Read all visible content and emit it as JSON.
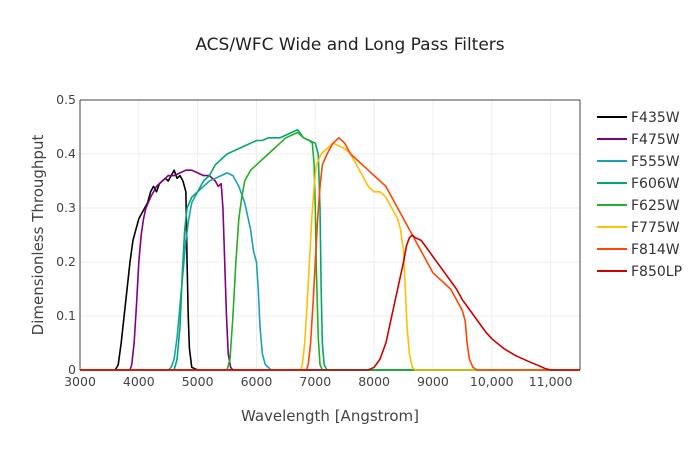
{
  "chart_data": {
    "type": "line",
    "title": "ACS/WFC Wide and Long Pass Filters",
    "xlabel": "Wavelength [Angstrom]",
    "ylabel": "Dimensionless Throughput",
    "xlim": [
      3000,
      11500
    ],
    "ylim": [
      0,
      0.5
    ],
    "x_ticks": [
      3000,
      4000,
      5000,
      6000,
      7000,
      8000,
      9000,
      10000,
      11000
    ],
    "x_tick_labels": [
      "3000",
      "4000",
      "5000",
      "6000",
      "7000",
      "8000",
      "9000",
      "10,000",
      "11,000"
    ],
    "y_ticks": [
      0,
      0.1,
      0.2,
      0.3,
      0.4,
      0.5
    ],
    "y_tick_labels": [
      "0",
      "0.1",
      "0.2",
      "0.3",
      "0.4",
      "0.5"
    ],
    "grid": true,
    "legend_position": "right",
    "series": [
      {
        "name": "F435W",
        "color": "#000000",
        "points": [
          [
            3000,
            0
          ],
          [
            3600,
            0
          ],
          [
            3650,
            0.01
          ],
          [
            3700,
            0.05
          ],
          [
            3750,
            0.1
          ],
          [
            3800,
            0.15
          ],
          [
            3850,
            0.2
          ],
          [
            3900,
            0.24
          ],
          [
            3950,
            0.26
          ],
          [
            4000,
            0.28
          ],
          [
            4050,
            0.29
          ],
          [
            4100,
            0.3
          ],
          [
            4150,
            0.31
          ],
          [
            4200,
            0.33
          ],
          [
            4250,
            0.34
          ],
          [
            4300,
            0.33
          ],
          [
            4350,
            0.345
          ],
          [
            4400,
            0.35
          ],
          [
            4450,
            0.355
          ],
          [
            4500,
            0.35
          ],
          [
            4550,
            0.36
          ],
          [
            4600,
            0.37
          ],
          [
            4650,
            0.355
          ],
          [
            4700,
            0.36
          ],
          [
            4750,
            0.35
          ],
          [
            4800,
            0.33
          ],
          [
            4820,
            0.2
          ],
          [
            4840,
            0.1
          ],
          [
            4860,
            0.04
          ],
          [
            4900,
            0.005
          ],
          [
            5000,
            0
          ],
          [
            11500,
            0
          ]
        ]
      },
      {
        "name": "F475W",
        "color": "#800080",
        "points": [
          [
            3000,
            0
          ],
          [
            3850,
            0
          ],
          [
            3880,
            0.01
          ],
          [
            3920,
            0.05
          ],
          [
            3960,
            0.12
          ],
          [
            4000,
            0.2
          ],
          [
            4040,
            0.25
          ],
          [
            4080,
            0.28
          ],
          [
            4120,
            0.3
          ],
          [
            4200,
            0.32
          ],
          [
            4300,
            0.34
          ],
          [
            4400,
            0.35
          ],
          [
            4500,
            0.36
          ],
          [
            4600,
            0.36
          ],
          [
            4700,
            0.365
          ],
          [
            4800,
            0.37
          ],
          [
            4900,
            0.37
          ],
          [
            5000,
            0.365
          ],
          [
            5100,
            0.36
          ],
          [
            5200,
            0.36
          ],
          [
            5300,
            0.35
          ],
          [
            5350,
            0.34
          ],
          [
            5400,
            0.345
          ],
          [
            5430,
            0.3
          ],
          [
            5460,
            0.2
          ],
          [
            5490,
            0.1
          ],
          [
            5520,
            0.03
          ],
          [
            5560,
            0.005
          ],
          [
            5600,
            0
          ],
          [
            11500,
            0
          ]
        ]
      },
      {
        "name": "F555W",
        "color": "#17a2b8",
        "points": [
          [
            3000,
            0
          ],
          [
            4500,
            0
          ],
          [
            4550,
            0.005
          ],
          [
            4600,
            0.02
          ],
          [
            4650,
            0.06
          ],
          [
            4700,
            0.12
          ],
          [
            4750,
            0.18
          ],
          [
            4800,
            0.24
          ],
          [
            4850,
            0.28
          ],
          [
            4900,
            0.31
          ],
          [
            5000,
            0.33
          ],
          [
            5100,
            0.34
          ],
          [
            5200,
            0.35
          ],
          [
            5300,
            0.355
          ],
          [
            5400,
            0.36
          ],
          [
            5500,
            0.365
          ],
          [
            5600,
            0.36
          ],
          [
            5700,
            0.34
          ],
          [
            5800,
            0.31
          ],
          [
            5900,
            0.26
          ],
          [
            5950,
            0.22
          ],
          [
            6000,
            0.2
          ],
          [
            6030,
            0.15
          ],
          [
            6060,
            0.08
          ],
          [
            6100,
            0.03
          ],
          [
            6150,
            0.01
          ],
          [
            6250,
            0
          ],
          [
            11500,
            0
          ]
        ]
      },
      {
        "name": "F606W",
        "color": "#00a86b",
        "points": [
          [
            3000,
            0
          ],
          [
            4600,
            0
          ],
          [
            4650,
            0.02
          ],
          [
            4700,
            0.08
          ],
          [
            4740,
            0.18
          ],
          [
            4780,
            0.26
          ],
          [
            4820,
            0.3
          ],
          [
            4900,
            0.32
          ],
          [
            5000,
            0.33
          ],
          [
            5100,
            0.35
          ],
          [
            5200,
            0.36
          ],
          [
            5300,
            0.38
          ],
          [
            5400,
            0.39
          ],
          [
            5500,
            0.4
          ],
          [
            5600,
            0.405
          ],
          [
            5700,
            0.41
          ],
          [
            5800,
            0.415
          ],
          [
            5900,
            0.42
          ],
          [
            6000,
            0.425
          ],
          [
            6100,
            0.425
          ],
          [
            6200,
            0.43
          ],
          [
            6300,
            0.43
          ],
          [
            6400,
            0.43
          ],
          [
            6500,
            0.435
          ],
          [
            6600,
            0.44
          ],
          [
            6700,
            0.445
          ],
          [
            6800,
            0.43
          ],
          [
            6900,
            0.425
          ],
          [
            7000,
            0.42
          ],
          [
            7050,
            0.4
          ],
          [
            7080,
            0.3
          ],
          [
            7100,
            0.15
          ],
          [
            7120,
            0.05
          ],
          [
            7150,
            0.01
          ],
          [
            7200,
            0
          ],
          [
            11500,
            0
          ]
        ]
      },
      {
        "name": "F625W",
        "color": "#22b022",
        "points": [
          [
            3000,
            0
          ],
          [
            5500,
            0
          ],
          [
            5550,
            0.02
          ],
          [
            5600,
            0.1
          ],
          [
            5650,
            0.2
          ],
          [
            5700,
            0.28
          ],
          [
            5750,
            0.32
          ],
          [
            5800,
            0.35
          ],
          [
            5900,
            0.37
          ],
          [
            6000,
            0.38
          ],
          [
            6100,
            0.39
          ],
          [
            6200,
            0.4
          ],
          [
            6300,
            0.41
          ],
          [
            6400,
            0.42
          ],
          [
            6500,
            0.43
          ],
          [
            6600,
            0.435
          ],
          [
            6700,
            0.44
          ],
          [
            6800,
            0.43
          ],
          [
            6900,
            0.425
          ],
          [
            6950,
            0.42
          ],
          [
            6980,
            0.38
          ],
          [
            7000,
            0.3
          ],
          [
            7020,
            0.18
          ],
          [
            7050,
            0.06
          ],
          [
            7080,
            0.01
          ],
          [
            7120,
            0
          ],
          [
            11500,
            0
          ]
        ]
      },
      {
        "name": "F775W",
        "color": "#ffc000",
        "points": [
          [
            3000,
            0
          ],
          [
            6750,
            0
          ],
          [
            6780,
            0.01
          ],
          [
            6820,
            0.05
          ],
          [
            6860,
            0.12
          ],
          [
            6900,
            0.2
          ],
          [
            6940,
            0.28
          ],
          [
            6980,
            0.34
          ],
          [
            7020,
            0.38
          ],
          [
            7100,
            0.4
          ],
          [
            7200,
            0.41
          ],
          [
            7300,
            0.42
          ],
          [
            7400,
            0.415
          ],
          [
            7500,
            0.41
          ],
          [
            7600,
            0.4
          ],
          [
            7700,
            0.38
          ],
          [
            7800,
            0.36
          ],
          [
            7900,
            0.34
          ],
          [
            8000,
            0.33
          ],
          [
            8100,
            0.33
          ],
          [
            8200,
            0.32
          ],
          [
            8300,
            0.3
          ],
          [
            8400,
            0.28
          ],
          [
            8450,
            0.26
          ],
          [
            8500,
            0.22
          ],
          [
            8530,
            0.15
          ],
          [
            8560,
            0.08
          ],
          [
            8600,
            0.03
          ],
          [
            8650,
            0.005
          ],
          [
            8700,
            0
          ],
          [
            11500,
            0
          ]
        ]
      },
      {
        "name": "F814W",
        "color": "#ff4500",
        "points": [
          [
            3000,
            0
          ],
          [
            6850,
            0
          ],
          [
            6880,
            0.01
          ],
          [
            6920,
            0.05
          ],
          [
            6960,
            0.12
          ],
          [
            7000,
            0.2
          ],
          [
            7040,
            0.28
          ],
          [
            7080,
            0.34
          ],
          [
            7120,
            0.38
          ],
          [
            7200,
            0.4
          ],
          [
            7300,
            0.42
          ],
          [
            7400,
            0.43
          ],
          [
            7500,
            0.42
          ],
          [
            7600,
            0.4
          ],
          [
            7700,
            0.39
          ],
          [
            7800,
            0.38
          ],
          [
            7900,
            0.37
          ],
          [
            8000,
            0.36
          ],
          [
            8100,
            0.35
          ],
          [
            8200,
            0.34
          ],
          [
            8300,
            0.32
          ],
          [
            8400,
            0.3
          ],
          [
            8500,
            0.28
          ],
          [
            8600,
            0.26
          ],
          [
            8700,
            0.24
          ],
          [
            8800,
            0.22
          ],
          [
            8900,
            0.2
          ],
          [
            9000,
            0.18
          ],
          [
            9100,
            0.17
          ],
          [
            9200,
            0.16
          ],
          [
            9300,
            0.15
          ],
          [
            9400,
            0.13
          ],
          [
            9500,
            0.11
          ],
          [
            9550,
            0.09
          ],
          [
            9580,
            0.05
          ],
          [
            9620,
            0.02
          ],
          [
            9680,
            0.005
          ],
          [
            9750,
            0
          ],
          [
            11500,
            0
          ]
        ]
      },
      {
        "name": "F850LP",
        "color": "#cc0000",
        "points": [
          [
            3000,
            0
          ],
          [
            7900,
            0
          ],
          [
            8000,
            0.005
          ],
          [
            8100,
            0.02
          ],
          [
            8200,
            0.05
          ],
          [
            8300,
            0.1
          ],
          [
            8400,
            0.15
          ],
          [
            8500,
            0.2
          ],
          [
            8550,
            0.23
          ],
          [
            8600,
            0.245
          ],
          [
            8650,
            0.25
          ],
          [
            8700,
            0.245
          ],
          [
            8800,
            0.24
          ],
          [
            8900,
            0.225
          ],
          [
            9000,
            0.21
          ],
          [
            9100,
            0.195
          ],
          [
            9200,
            0.18
          ],
          [
            9300,
            0.165
          ],
          [
            9400,
            0.15
          ],
          [
            9500,
            0.13
          ],
          [
            9600,
            0.115
          ],
          [
            9700,
            0.1
          ],
          [
            9800,
            0.085
          ],
          [
            9900,
            0.07
          ],
          [
            10000,
            0.058
          ],
          [
            10200,
            0.04
          ],
          [
            10400,
            0.027
          ],
          [
            10600,
            0.017
          ],
          [
            10800,
            0.008
          ],
          [
            10900,
            0.003
          ],
          [
            11000,
            0
          ],
          [
            11500,
            0
          ]
        ]
      }
    ]
  }
}
